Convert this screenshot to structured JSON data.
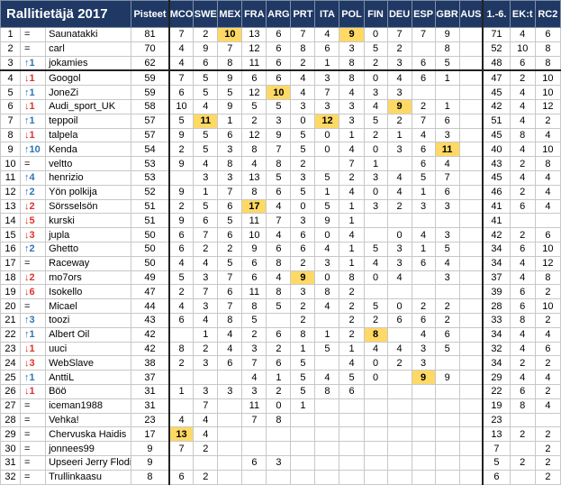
{
  "header": {
    "title": "Rallitietäjä 2017",
    "points": "Pisteet",
    "rallies": [
      "MCO",
      "SWE",
      "MEX",
      "FRA",
      "ARG",
      "PRT",
      "ITA",
      "POL",
      "FIN",
      "DEU",
      "ESP",
      "GBR",
      "AUS"
    ],
    "totals": [
      "1.-6.",
      "EK:t",
      "RC2"
    ]
  },
  "rows": [
    {
      "cells": [
        1,
        "=",
        "Saunatakki",
        81,
        7,
        2,
        10,
        13,
        6,
        7,
        4,
        9,
        0,
        7,
        7,
        9,
        null,
        71,
        4,
        6
      ],
      "highlight": [
        6,
        11
      ]
    },
    {
      "cells": [
        2,
        "=",
        "carl",
        70,
        4,
        9,
        7,
        12,
        6,
        8,
        6,
        3,
        5,
        2,
        null,
        8,
        null,
        52,
        10,
        8
      ],
      "highlight": []
    },
    {
      "cells": [
        3,
        "↑1",
        "jokamies",
        62,
        4,
        6,
        8,
        11,
        6,
        2,
        1,
        8,
        2,
        3,
        6,
        5,
        null,
        48,
        6,
        8
      ],
      "highlight": []
    },
    {
      "cells": [
        4,
        "↓1",
        "Googol",
        59,
        7,
        5,
        9,
        6,
        6,
        4,
        3,
        8,
        0,
        4,
        6,
        1,
        null,
        47,
        2,
        10
      ],
      "highlight": []
    },
    {
      "cells": [
        5,
        "↑1",
        "JoneZi",
        59,
        6,
        5,
        5,
        12,
        10,
        4,
        7,
        4,
        3,
        3,
        null,
        null,
        null,
        45,
        4,
        10
      ],
      "highlight": [
        8
      ]
    },
    {
      "cells": [
        6,
        "↓1",
        "Audi_sport_UK",
        58,
        10,
        4,
        9,
        5,
        5,
        3,
        3,
        3,
        4,
        9,
        2,
        1,
        null,
        42,
        4,
        12
      ],
      "highlight": [
        13
      ]
    },
    {
      "cells": [
        7,
        "↑1",
        "teppoil",
        57,
        5,
        11,
        1,
        2,
        3,
        0,
        12,
        3,
        5,
        2,
        7,
        6,
        null,
        51,
        4,
        2
      ],
      "highlight": [
        5,
        10
      ]
    },
    {
      "cells": [
        8,
        "↓1",
        "talpela",
        57,
        9,
        5,
        6,
        12,
        9,
        5,
        0,
        1,
        2,
        1,
        4,
        3,
        null,
        45,
        8,
        4
      ],
      "highlight": []
    },
    {
      "cells": [
        9,
        "↑10",
        "Kenda",
        54,
        2,
        5,
        3,
        8,
        7,
        5,
        0,
        4,
        0,
        3,
        6,
        11,
        null,
        40,
        4,
        10
      ],
      "highlight": [
        15
      ]
    },
    {
      "cells": [
        10,
        "=",
        "veltto",
        53,
        9,
        4,
        8,
        4,
        8,
        2,
        null,
        7,
        1,
        null,
        6,
        4,
        null,
        43,
        2,
        8
      ],
      "highlight": []
    },
    {
      "cells": [
        11,
        "↑4",
        "henrizio",
        53,
        null,
        3,
        3,
        13,
        5,
        3,
        5,
        2,
        3,
        4,
        5,
        7,
        null,
        45,
        4,
        4
      ],
      "highlight": []
    },
    {
      "cells": [
        12,
        "↑2",
        "Yön polkija",
        52,
        9,
        1,
        7,
        8,
        6,
        5,
        1,
        4,
        0,
        4,
        1,
        6,
        null,
        46,
        2,
        4
      ],
      "highlight": []
    },
    {
      "cells": [
        13,
        "↓2",
        "Sörsselsön",
        51,
        2,
        5,
        6,
        17,
        4,
        0,
        5,
        1,
        3,
        2,
        3,
        3,
        null,
        41,
        6,
        4
      ],
      "highlight": [
        7
      ]
    },
    {
      "cells": [
        14,
        "↓5",
        "kurski",
        51,
        9,
        6,
        5,
        11,
        7,
        3,
        9,
        1,
        null,
        null,
        null,
        null,
        null,
        41,
        null,
        null
      ],
      "highlight": []
    },
    {
      "cells": [
        15,
        "↓3",
        "jupla",
        50,
        6,
        7,
        6,
        10,
        4,
        6,
        0,
        4,
        null,
        0,
        4,
        3,
        null,
        42,
        2,
        6
      ],
      "highlight": []
    },
    {
      "cells": [
        16,
        "↑2",
        "Ghetto",
        50,
        6,
        2,
        2,
        9,
        6,
        6,
        4,
        1,
        5,
        3,
        1,
        5,
        null,
        34,
        6,
        10
      ],
      "highlight": []
    },
    {
      "cells": [
        17,
        "=",
        "Raceway",
        50,
        4,
        4,
        5,
        6,
        8,
        2,
        3,
        1,
        4,
        3,
        6,
        4,
        null,
        34,
        4,
        12
      ],
      "highlight": []
    },
    {
      "cells": [
        18,
        "↓2",
        "mo7ors",
        49,
        5,
        3,
        7,
        6,
        4,
        9,
        0,
        8,
        0,
        4,
        null,
        3,
        null,
        37,
        4,
        8
      ],
      "highlight": [
        9
      ]
    },
    {
      "cells": [
        19,
        "↓6",
        "Isokello",
        47,
        2,
        7,
        6,
        11,
        8,
        3,
        8,
        2,
        null,
        null,
        null,
        null,
        null,
        39,
        6,
        2
      ],
      "highlight": []
    },
    {
      "cells": [
        20,
        "=",
        "Micael",
        44,
        4,
        3,
        7,
        8,
        5,
        2,
        4,
        2,
        5,
        0,
        2,
        2,
        null,
        28,
        6,
        10
      ],
      "highlight": []
    },
    {
      "cells": [
        21,
        "↑3",
        "toozi",
        43,
        6,
        4,
        8,
        5,
        null,
        2,
        null,
        2,
        2,
        6,
        6,
        2,
        null,
        33,
        8,
        2
      ],
      "highlight": []
    },
    {
      "cells": [
        22,
        "↑1",
        "Albert Oil",
        42,
        null,
        1,
        4,
        2,
        6,
        8,
        1,
        2,
        8,
        null,
        4,
        6,
        null,
        34,
        4,
        4
      ],
      "highlight": [
        12
      ]
    },
    {
      "cells": [
        23,
        "↓1",
        "uuci",
        42,
        8,
        2,
        4,
        3,
        2,
        1,
        5,
        1,
        4,
        4,
        3,
        5,
        null,
        32,
        4,
        6
      ],
      "highlight": []
    },
    {
      "cells": [
        24,
        "↓3",
        "WebSlave",
        38,
        2,
        3,
        6,
        7,
        6,
        5,
        null,
        4,
        0,
        2,
        3,
        null,
        null,
        34,
        2,
        2
      ],
      "highlight": []
    },
    {
      "cells": [
        25,
        "↑1",
        "AnttiL",
        37,
        null,
        null,
        null,
        4,
        1,
        5,
        4,
        5,
        0,
        null,
        9,
        9,
        null,
        29,
        4,
        4
      ],
      "highlight": [
        14
      ]
    },
    {
      "cells": [
        26,
        "↓1",
        "Böö",
        31,
        1,
        3,
        3,
        3,
        2,
        5,
        8,
        6,
        null,
        null,
        null,
        null,
        null,
        22,
        6,
        2
      ],
      "highlight": []
    },
    {
      "cells": [
        27,
        "=",
        "iceman1988",
        31,
        null,
        7,
        null,
        11,
        0,
        1,
        null,
        null,
        null,
        null,
        null,
        null,
        null,
        19,
        8,
        4
      ],
      "highlight": []
    },
    {
      "cells": [
        28,
        "=",
        "Vehka!",
        23,
        4,
        4,
        null,
        7,
        8,
        null,
        null,
        null,
        null,
        null,
        null,
        null,
        null,
        23,
        null,
        null
      ],
      "highlight": []
    },
    {
      "cells": [
        29,
        "=",
        "Chervuska Haidis",
        17,
        13,
        4,
        null,
        null,
        null,
        null,
        null,
        null,
        null,
        null,
        null,
        null,
        null,
        13,
        2,
        2
      ],
      "highlight": [
        4
      ]
    },
    {
      "cells": [
        30,
        "=",
        "jonnees99",
        9,
        7,
        2,
        null,
        null,
        null,
        null,
        null,
        null,
        null,
        null,
        null,
        null,
        null,
        7,
        null,
        2
      ],
      "highlight": []
    },
    {
      "cells": [
        31,
        "=",
        "Upseeri Jerry Flodin",
        9,
        null,
        null,
        null,
        6,
        3,
        null,
        null,
        null,
        null,
        null,
        null,
        null,
        null,
        5,
        2,
        2
      ],
      "highlight": []
    },
    {
      "cells": [
        32,
        "=",
        "Trullinkaasu",
        8,
        6,
        2,
        null,
        null,
        null,
        null,
        null,
        null,
        null,
        null,
        null,
        null,
        null,
        6,
        null,
        2
      ],
      "highlight": []
    }
  ],
  "separator_after_row": 3
}
